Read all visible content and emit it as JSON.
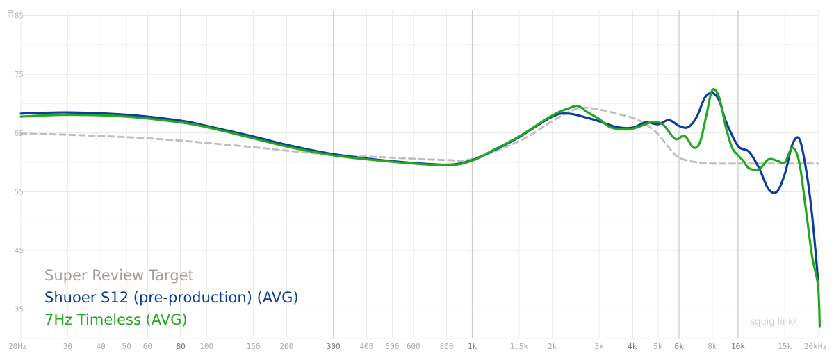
{
  "chart_data": {
    "type": "line",
    "unit_label": "dB",
    "xscale": "log",
    "xlim": [
      20,
      20000
    ],
    "ylim": [
      30,
      86
    ],
    "y_ticks": [
      85,
      75,
      65,
      55,
      45,
      35
    ],
    "x_ticks": [
      {
        "value": 20,
        "label": "20Hz",
        "major": false
      },
      {
        "value": 30,
        "label": "30",
        "major": false
      },
      {
        "value": 40,
        "label": "40",
        "major": false
      },
      {
        "value": 50,
        "label": "50",
        "major": false
      },
      {
        "value": 60,
        "label": "60",
        "major": false
      },
      {
        "value": 80,
        "label": "80",
        "major": true
      },
      {
        "value": 100,
        "label": "100",
        "major": false
      },
      {
        "value": 150,
        "label": "150",
        "major": false
      },
      {
        "value": 200,
        "label": "200",
        "major": false
      },
      {
        "value": 300,
        "label": "300",
        "major": true
      },
      {
        "value": 400,
        "label": "400",
        "major": false
      },
      {
        "value": 500,
        "label": "500",
        "major": false
      },
      {
        "value": 600,
        "label": "600",
        "major": false
      },
      {
        "value": 800,
        "label": "800",
        "major": false
      },
      {
        "value": 1000,
        "label": "1k",
        "major": true
      },
      {
        "value": 1500,
        "label": "1.5k",
        "major": false
      },
      {
        "value": 2000,
        "label": "2k",
        "major": false
      },
      {
        "value": 3000,
        "label": "3k",
        "major": false
      },
      {
        "value": 4000,
        "label": "4k",
        "major": true
      },
      {
        "value": 5000,
        "label": "5k",
        "major": false
      },
      {
        "value": 6000,
        "label": "6k",
        "major": true
      },
      {
        "value": 8000,
        "label": "8k",
        "major": false
      },
      {
        "value": 10000,
        "label": "10k",
        "major": true
      },
      {
        "value": 15000,
        "label": "15k",
        "major": false
      },
      {
        "value": 20000,
        "label": "20kHz",
        "major": false
      }
    ],
    "grid": true,
    "legend_position": "bottom-left",
    "watermark": "squig.link/",
    "series": [
      {
        "name": "Super Review Target",
        "color": "#c0c0c0",
        "dashed": true,
        "points": [
          [
            20,
            64.9
          ],
          [
            30,
            64.7
          ],
          [
            50,
            64.3
          ],
          [
            80,
            63.7
          ],
          [
            100,
            63.3
          ],
          [
            150,
            62.6
          ],
          [
            200,
            62.0
          ],
          [
            300,
            61.3
          ],
          [
            500,
            60.8
          ],
          [
            800,
            60.4
          ],
          [
            1000,
            60.6
          ],
          [
            1500,
            63.6
          ],
          [
            2000,
            67.0
          ],
          [
            2500,
            69.2
          ],
          [
            3000,
            69.0
          ],
          [
            3500,
            68.3
          ],
          [
            4000,
            67.6
          ],
          [
            4500,
            66.5
          ],
          [
            5000,
            64.8
          ],
          [
            5500,
            62.5
          ],
          [
            6000,
            60.8
          ],
          [
            7000,
            60.0
          ],
          [
            8000,
            59.8
          ],
          [
            10000,
            59.8
          ],
          [
            15000,
            59.8
          ],
          [
            20000,
            59.8
          ]
        ]
      },
      {
        "name": "Shuoer S12 (pre-production) (AVG)",
        "color": "#0b3d9c",
        "dashed": false,
        "points": [
          [
            20,
            68.3
          ],
          [
            30,
            68.5
          ],
          [
            50,
            68.1
          ],
          [
            80,
            67.1
          ],
          [
            100,
            66.2
          ],
          [
            150,
            64.4
          ],
          [
            200,
            63.0
          ],
          [
            300,
            61.4
          ],
          [
            500,
            60.2
          ],
          [
            800,
            59.6
          ],
          [
            1000,
            60.4
          ],
          [
            1200,
            62.0
          ],
          [
            1500,
            64.3
          ],
          [
            2000,
            67.8
          ],
          [
            2300,
            68.3
          ],
          [
            2700,
            67.6
          ],
          [
            3000,
            67.0
          ],
          [
            3500,
            66.0
          ],
          [
            4000,
            65.9
          ],
          [
            4500,
            66.8
          ],
          [
            5000,
            66.5
          ],
          [
            5500,
            67.2
          ],
          [
            6000,
            66.2
          ],
          [
            6500,
            66.0
          ],
          [
            7000,
            67.8
          ],
          [
            7500,
            71.0
          ],
          [
            8000,
            71.8
          ],
          [
            8500,
            70.5
          ],
          [
            9000,
            67.0
          ],
          [
            10000,
            62.8
          ],
          [
            11000,
            61.8
          ],
          [
            12000,
            59.0
          ],
          [
            13000,
            55.5
          ],
          [
            14000,
            55.0
          ],
          [
            15000,
            58.0
          ],
          [
            16000,
            63.0
          ],
          [
            17000,
            64.0
          ],
          [
            18000,
            59.0
          ],
          [
            19000,
            51.0
          ],
          [
            20000,
            40.0
          ]
        ]
      },
      {
        "name": "7Hz Timeless (AVG)",
        "color": "#22a81e",
        "dashed": false,
        "points": [
          [
            20,
            67.8
          ],
          [
            30,
            68.1
          ],
          [
            50,
            67.8
          ],
          [
            80,
            66.8
          ],
          [
            100,
            66.0
          ],
          [
            150,
            64.1
          ],
          [
            200,
            62.7
          ],
          [
            300,
            61.2
          ],
          [
            500,
            60.1
          ],
          [
            800,
            59.5
          ],
          [
            1000,
            60.3
          ],
          [
            1200,
            62.1
          ],
          [
            1500,
            64.4
          ],
          [
            2000,
            68.0
          ],
          [
            2300,
            69.2
          ],
          [
            2500,
            69.6
          ],
          [
            2700,
            68.6
          ],
          [
            3000,
            67.4
          ],
          [
            3300,
            66.0
          ],
          [
            3800,
            65.6
          ],
          [
            4200,
            66.0
          ],
          [
            4700,
            66.8
          ],
          [
            5200,
            66.5
          ],
          [
            5800,
            64.0
          ],
          [
            6300,
            64.5
          ],
          [
            6800,
            62.5
          ],
          [
            7200,
            63.5
          ],
          [
            7600,
            68.0
          ],
          [
            8000,
            72.3
          ],
          [
            8500,
            71.0
          ],
          [
            9000,
            66.0
          ],
          [
            9500,
            62.5
          ],
          [
            10000,
            61.2
          ],
          [
            10500,
            60.2
          ],
          [
            11000,
            59.0
          ],
          [
            12000,
            58.8
          ],
          [
            13000,
            60.5
          ],
          [
            14000,
            60.3
          ],
          [
            15000,
            60.0
          ],
          [
            16000,
            62.5
          ],
          [
            17000,
            60.0
          ],
          [
            18000,
            52.0
          ],
          [
            19000,
            44.0
          ],
          [
            20000,
            39.0
          ],
          [
            20300,
            32.0
          ]
        ]
      }
    ]
  }
}
